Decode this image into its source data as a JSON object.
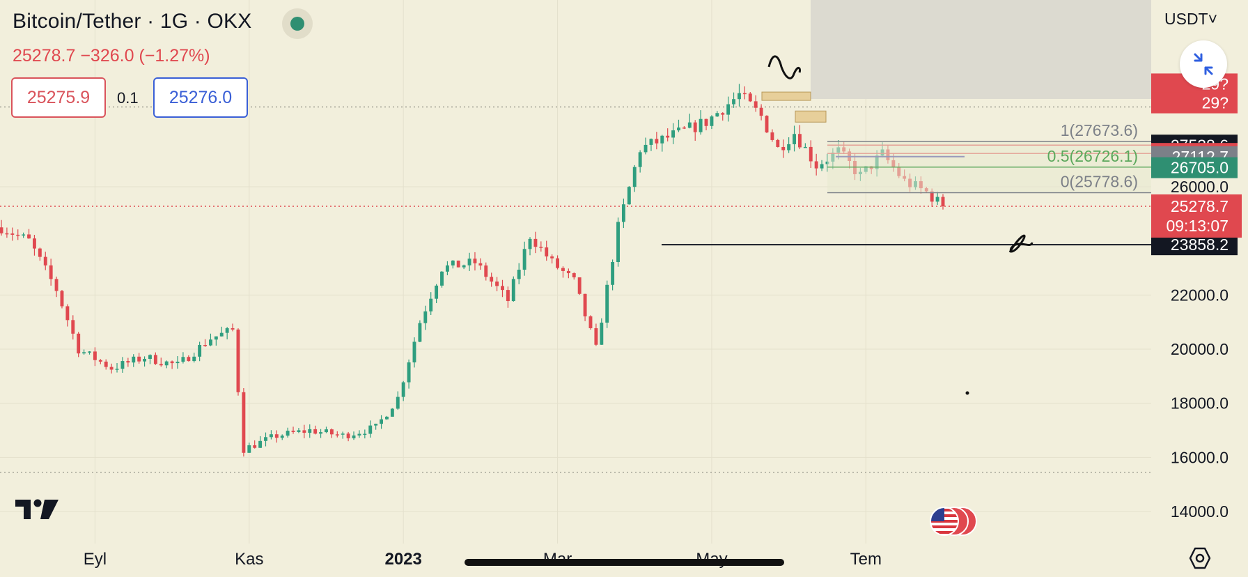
{
  "header": {
    "title": "Bitcoin/Tether · 1G · OKX",
    "change": "25278.7 −326.0 (−1.27%)",
    "sell_price": "25275.9",
    "spread": "0.1",
    "buy_price": "25276.0",
    "currency": "USDT˅"
  },
  "colors": {
    "background": "#f2efdc",
    "up": "#2f9e7f",
    "down": "#e0484f",
    "accent_blue": "#3a5fd6"
  },
  "icons": [
    "status-dot-icon",
    "collapse-arrows-icon",
    "tradingview-logo-icon",
    "us-flag-icon",
    "settings-hexagon-icon"
  ],
  "chart_data": {
    "type": "candlestick",
    "title": "Bitcoin/Tether · 1G · OKX",
    "x_tick_labels": [
      "Eyl",
      "Kas",
      "2023",
      "Mar",
      "May",
      "Tem"
    ],
    "y_ticks": [
      14000,
      16000,
      18000,
      20000,
      22000,
      26000
    ],
    "y_tick_labels": [
      "14000.0",
      "16000.0",
      "18000.0",
      "20000.0",
      "22000.0",
      "26000.0"
    ],
    "ylim": [
      13000,
      30200
    ],
    "grid": true,
    "last_price": 25278.7,
    "last_price_label": "25278.7",
    "countdown": "09:13:07",
    "price_tags": [
      {
        "label": "29?",
        "value": 29800,
        "color": "#e0484f"
      },
      {
        "label": "29?",
        "value": 29100,
        "color": "#e0484f"
      },
      {
        "label": "27538.6",
        "value": 27538.6,
        "color": "#131722"
      },
      {
        "label": "27231.3",
        "value": 27231.3,
        "color": "#e0484f"
      },
      {
        "label": "27112.7",
        "value": 27112.7,
        "color": "#7c8088"
      },
      {
        "label": "26705.0",
        "value": 26705.0,
        "color": "#2f8f72"
      },
      {
        "label": "23858.2",
        "value": 23858.2,
        "color": "#131722"
      }
    ],
    "fib_levels": [
      {
        "label": "1(27673.6)",
        "value": 27673.6
      },
      {
        "label": "0.5(26726.1)",
        "value": 26726.1
      },
      {
        "label": "0(25778.6)",
        "value": 25778.6
      }
    ],
    "horizontal_lines": [
      23858.2,
      27538.6,
      27231.3,
      27112.7
    ],
    "annotation_text": "α",
    "series_close_anchors": [
      {
        "t": 0,
        "close": 24500
      },
      {
        "t": 5,
        "close": 24000
      },
      {
        "t": 10,
        "close": 22200
      },
      {
        "t": 14,
        "close": 20000
      },
      {
        "t": 20,
        "close": 19300
      },
      {
        "t": 26,
        "close": 19700
      },
      {
        "t": 32,
        "close": 19400
      },
      {
        "t": 38,
        "close": 20400
      },
      {
        "t": 42,
        "close": 20700
      },
      {
        "t": 44,
        "close": 16300
      },
      {
        "t": 50,
        "close": 16800
      },
      {
        "t": 56,
        "close": 17000
      },
      {
        "t": 62,
        "close": 16800
      },
      {
        "t": 68,
        "close": 17100
      },
      {
        "t": 72,
        "close": 18200
      },
      {
        "t": 76,
        "close": 21000
      },
      {
        "t": 80,
        "close": 23000
      },
      {
        "t": 86,
        "close": 23200
      },
      {
        "t": 92,
        "close": 21800
      },
      {
        "t": 96,
        "close": 24200
      },
      {
        "t": 100,
        "close": 23200
      },
      {
        "t": 104,
        "close": 22500
      },
      {
        "t": 108,
        "close": 20000
      },
      {
        "t": 112,
        "close": 24500
      },
      {
        "t": 116,
        "close": 27400
      },
      {
        "t": 122,
        "close": 27900
      },
      {
        "t": 128,
        "close": 28400
      },
      {
        "t": 134,
        "close": 29400
      },
      {
        "t": 138,
        "close": 28600
      },
      {
        "t": 141,
        "close": 27400
      },
      {
        "t": 144,
        "close": 28000
      },
      {
        "t": 148,
        "close": 26800
      },
      {
        "t": 152,
        "close": 27300
      },
      {
        "t": 156,
        "close": 26400
      },
      {
        "t": 160,
        "close": 27200
      },
      {
        "t": 164,
        "close": 26200
      },
      {
        "t": 168,
        "close": 25800
      },
      {
        "t": 171,
        "close": 25278.7
      }
    ]
  }
}
